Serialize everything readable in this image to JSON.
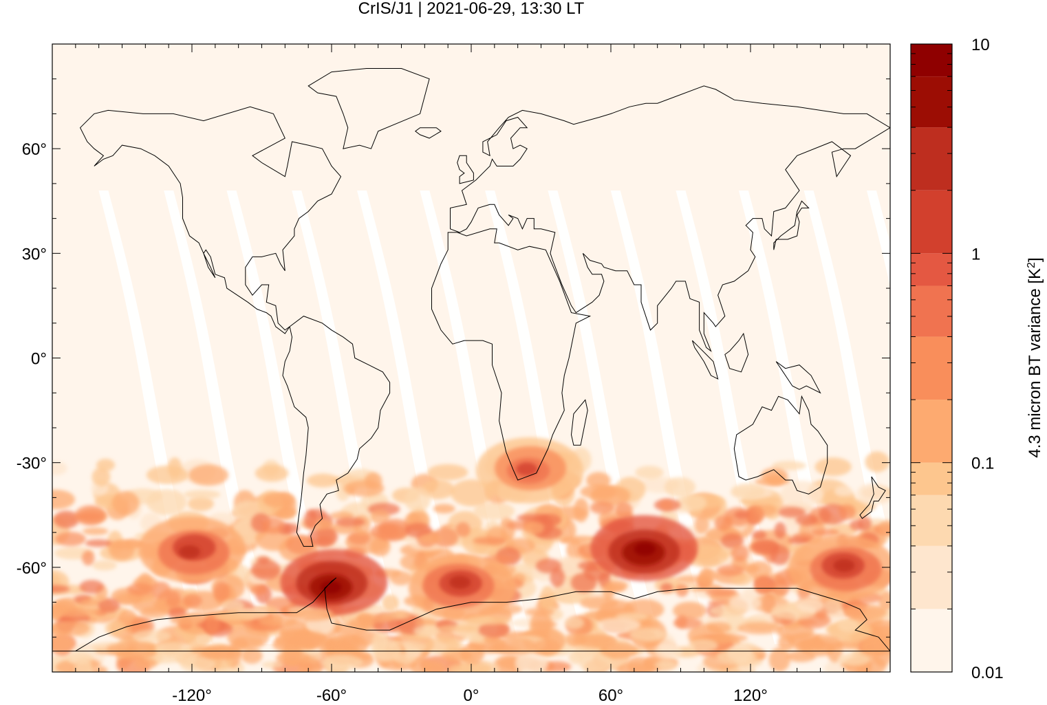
{
  "chart_data": {
    "type": "heatmap",
    "title": "CrIS/J1 | 2021-06-29, 13:30 LT",
    "xlabel": "",
    "ylabel": "",
    "xlim": [
      -180,
      180
    ],
    "ylim": [
      -90,
      90
    ],
    "x_ticks": [
      -120,
      -60,
      0,
      60,
      120
    ],
    "x_tick_labels": [
      "-120°",
      "-60°",
      "0°",
      "60°",
      "120°"
    ],
    "y_ticks": [
      60,
      30,
      0,
      -30,
      -60
    ],
    "y_tick_labels": [
      "60°",
      "30°",
      "0°",
      "-30°",
      "-60°"
    ],
    "grid": false,
    "colorbar": {
      "label": "4.3 micron BT variance [K²]",
      "label_main": "4.3 micron BT variance [K",
      "label_sup": "2",
      "label_end": "]",
      "scale": "log",
      "range": [
        0.01,
        10
      ],
      "tick_values": [
        10,
        1,
        0.1,
        0.01
      ],
      "tick_labels": [
        "10",
        "1",
        "0.1",
        "0.01"
      ],
      "levels": [
        0.01,
        0.02,
        0.04,
        0.07,
        0.1,
        0.2,
        0.4,
        0.7,
        1,
        2,
        4,
        7,
        10
      ],
      "colors": [
        "#fff5eb",
        "#fee6ce",
        "#fdd9b0",
        "#fdc68e",
        "#fdaa70",
        "#f98e5b",
        "#f07350",
        "#e45842",
        "#d2402d",
        "#be2e1f",
        "#9c0d04",
        "#8f0000"
      ]
    },
    "features": {
      "background_value": 0.01,
      "swath_gaps": "white diagonal gaps between satellite orbits",
      "high_variance_region": "southern hemisphere mid/high latitudes (-30° to -80°)",
      "hotspots": [
        {
          "lon": -60,
          "lat": -65,
          "value": 10
        },
        {
          "lon": 75,
          "lat": -55,
          "value": 10
        },
        {
          "lon": 25,
          "lat": -32,
          "value": 1
        },
        {
          "lon": -120,
          "lat": -55,
          "value": 2
        },
        {
          "lon": 160,
          "lat": -60,
          "value": 2
        },
        {
          "lon": -5,
          "lat": -65,
          "value": 2
        }
      ]
    }
  }
}
